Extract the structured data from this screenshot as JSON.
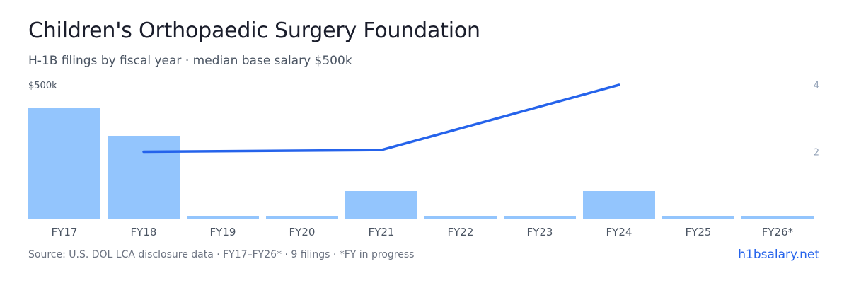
{
  "header": {
    "title": "Children's Orthopaedic Surgery Foundation",
    "subtitle": "H-1B filings by fiscal year · median base salary $500k"
  },
  "footer": {
    "source": "Source: U.S. DOL LCA disclosure data · FY17–FY26* · 9 filings · *FY in progress",
    "brand": "h1bsalary.net"
  },
  "colors": {
    "bar": "#93c5fd",
    "line": "#2563eb",
    "axis_text": "#94a3b8",
    "tick_text": "#4b5563"
  },
  "chart_data": {
    "type": "bar",
    "categories": [
      "FY17",
      "FY18",
      "FY19",
      "FY20",
      "FY21",
      "FY22",
      "FY23",
      "FY24",
      "FY25",
      "FY26*"
    ],
    "series": [
      {
        "type": "bar",
        "axis": "left",
        "values": [
          400,
          300,
          10,
          10,
          100,
          10,
          10,
          100,
          10,
          10
        ]
      },
      {
        "type": "line",
        "axis": "right",
        "values": [
          null,
          2.0,
          null,
          null,
          2.05,
          null,
          null,
          4.0,
          null,
          null
        ]
      }
    ],
    "y_left": {
      "max": 500,
      "tick_label": "$500k"
    },
    "y_right": {
      "min": 0,
      "max": 4,
      "tick_labels": [
        "4",
        "2"
      ],
      "tick_values": [
        4,
        2
      ]
    },
    "grid": false
  }
}
